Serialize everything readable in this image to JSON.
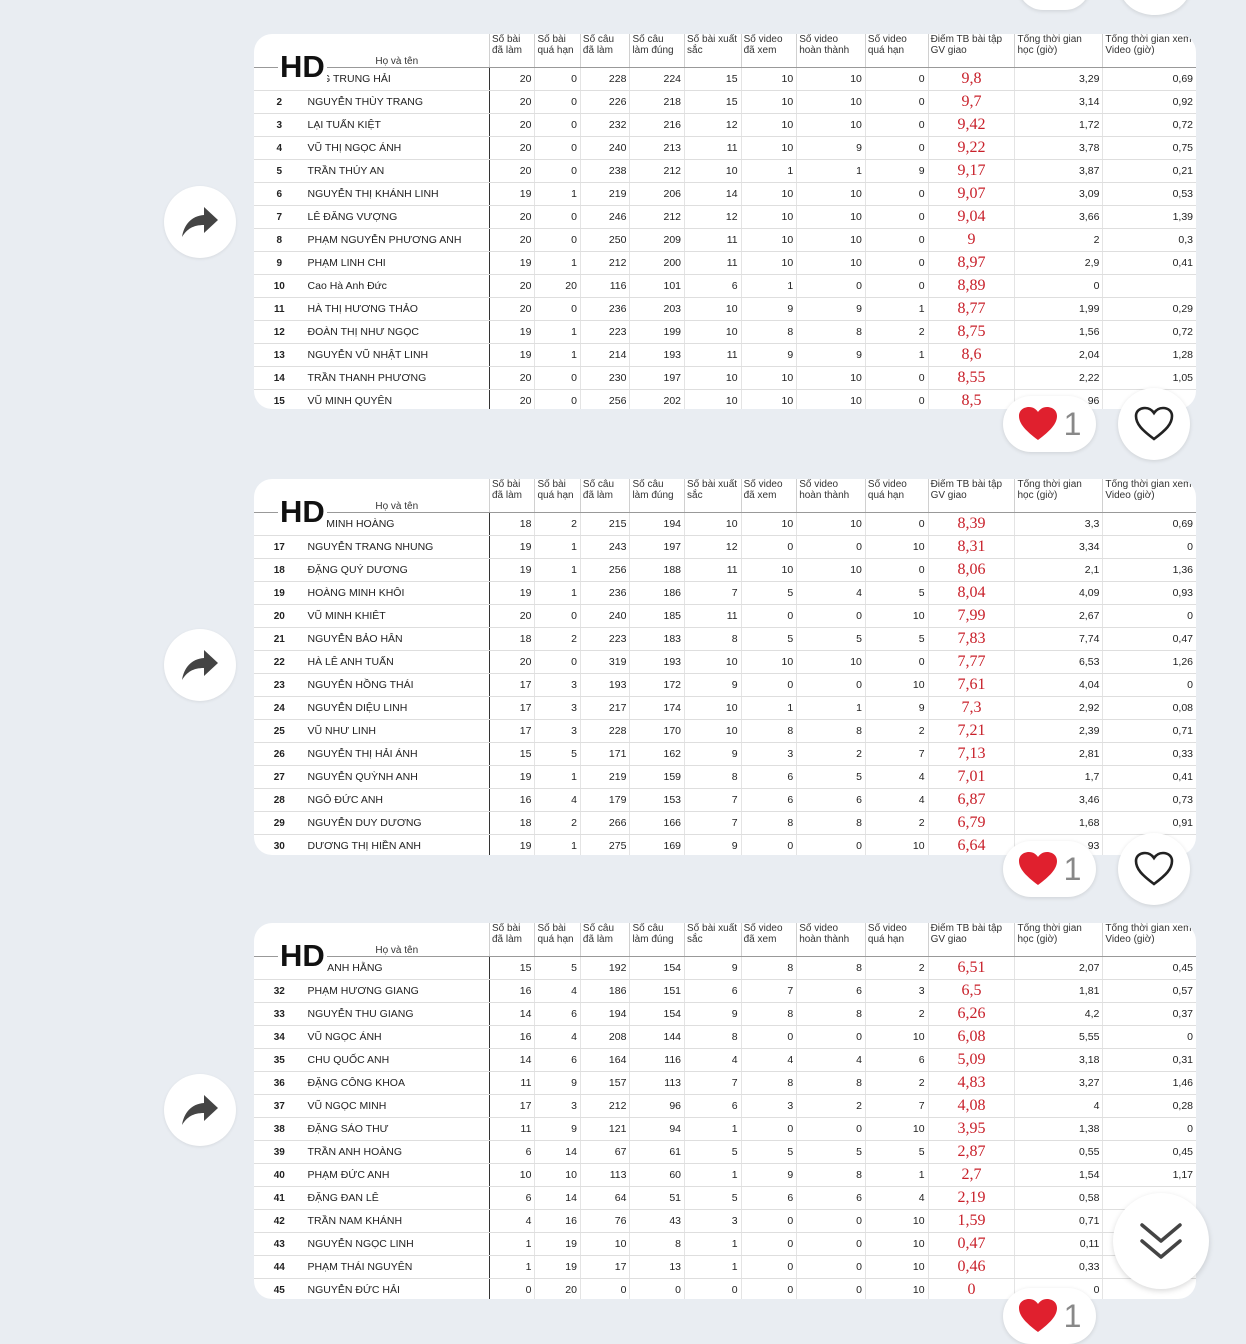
{
  "logo_text": "HD",
  "columns": {
    "stt": "",
    "name": "Họ và tên",
    "c1": "Số bài đã làm",
    "c2": "Số bài quá hạn",
    "c3": "Số câu đã làm",
    "c4": "Số câu làm đúng",
    "c5": "Số bài xuất sắc",
    "c6": "Số video đã xem",
    "c7": "Số video hoàn thành",
    "c8": "Số video quá hạn",
    "c9": "Điểm TB bài tập GV giao",
    "c10": "Tổng thời gian học (giờ)",
    "c11": "Tổng thời gian xem Video (giờ)"
  },
  "messages": [
    {
      "reaction_count": "1",
      "rows": [
        [
          "",
          "ĂNG TRUNG HẢI",
          "20",
          "0",
          "228",
          "224",
          "15",
          "10",
          "10",
          "0",
          "9,8",
          "3,29",
          "0,69"
        ],
        [
          "2",
          "NGUYỄN THÙY TRANG",
          "20",
          "0",
          "226",
          "218",
          "15",
          "10",
          "10",
          "0",
          "9,7",
          "3,14",
          "0,92"
        ],
        [
          "3",
          "LẠI TUẤN KIỆT",
          "20",
          "0",
          "232",
          "216",
          "12",
          "10",
          "10",
          "0",
          "9,42",
          "1,72",
          "0,72"
        ],
        [
          "4",
          "VŨ THỊ NGỌC ÁNH",
          "20",
          "0",
          "240",
          "213",
          "11",
          "10",
          "9",
          "0",
          "9,22",
          "3,78",
          "0,75"
        ],
        [
          "5",
          "TRẦN THÚY AN",
          "20",
          "0",
          "238",
          "212",
          "10",
          "1",
          "1",
          "9",
          "9,17",
          "3,87",
          "0,21"
        ],
        [
          "6",
          "NGUYỄN THỊ KHÁNH LINH",
          "19",
          "1",
          "219",
          "206",
          "14",
          "10",
          "10",
          "0",
          "9,07",
          "3,09",
          "0,53"
        ],
        [
          "7",
          "LÊ ĐĂNG VƯỢNG",
          "20",
          "0",
          "246",
          "212",
          "12",
          "10",
          "10",
          "0",
          "9,04",
          "3,66",
          "1,39"
        ],
        [
          "8",
          "PHẠM NGUYỄN PHƯƠNG ANH",
          "20",
          "0",
          "250",
          "209",
          "11",
          "10",
          "10",
          "0",
          "9",
          "2",
          "0,3"
        ],
        [
          "9",
          "PHẠM LINH CHI",
          "19",
          "1",
          "212",
          "200",
          "11",
          "10",
          "10",
          "0",
          "8,97",
          "2,9",
          "0,41"
        ],
        [
          "10",
          "Cao Hà Anh Đức",
          "20",
          "20",
          "116",
          "101",
          "6",
          "1",
          "0",
          "0",
          "8,89",
          "0",
          ""
        ],
        [
          "11",
          "HÀ THỊ HƯƠNG THẢO",
          "20",
          "0",
          "236",
          "203",
          "10",
          "9",
          "9",
          "1",
          "8,77",
          "1,99",
          "0,29"
        ],
        [
          "12",
          "ĐOÀN THỊ NHƯ NGỌC",
          "19",
          "1",
          "223",
          "199",
          "10",
          "8",
          "8",
          "2",
          "8,75",
          "1,56",
          "0,72"
        ],
        [
          "13",
          "NGUYỄN VŨ NHẬT LINH",
          "19",
          "1",
          "214",
          "193",
          "11",
          "9",
          "9",
          "1",
          "8,6",
          "2,04",
          "1,28"
        ],
        [
          "14",
          "TRẦN THANH PHƯƠNG",
          "20",
          "0",
          "230",
          "197",
          "10",
          "10",
          "10",
          "0",
          "8,55",
          "2,22",
          "1,05"
        ],
        [
          "15",
          "VŨ MINH QUYÊN",
          "20",
          "0",
          "256",
          "202",
          "10",
          "10",
          "10",
          "0",
          "8,5",
          "96",
          ""
        ]
      ]
    },
    {
      "reaction_count": "1",
      "rows": [
        [
          "",
          "ẠM MINH HOÀNG",
          "18",
          "2",
          "215",
          "194",
          "10",
          "10",
          "10",
          "0",
          "8,39",
          "3,3",
          "0,69"
        ],
        [
          "17",
          "NGUYỄN TRANG NHUNG",
          "19",
          "1",
          "243",
          "197",
          "12",
          "0",
          "0",
          "10",
          "8,31",
          "3,34",
          "0"
        ],
        [
          "18",
          "ĐẶNG QUÝ DƯƠNG",
          "19",
          "1",
          "256",
          "188",
          "11",
          "10",
          "10",
          "0",
          "8,06",
          "2,1",
          "1,36"
        ],
        [
          "19",
          "HOÀNG MINH KHÔI",
          "19",
          "1",
          "236",
          "186",
          "7",
          "5",
          "4",
          "5",
          "8,04",
          "4,09",
          "0,93"
        ],
        [
          "20",
          "VŨ MINH KHIÊT",
          "20",
          "0",
          "240",
          "185",
          "11",
          "0",
          "0",
          "10",
          "7,99",
          "2,67",
          "0"
        ],
        [
          "21",
          "NGUYỄN BẢO HÂN",
          "18",
          "2",
          "223",
          "183",
          "8",
          "5",
          "5",
          "5",
          "7,83",
          "7,74",
          "0,47"
        ],
        [
          "22",
          "HÀ LÊ ANH TUẤN",
          "20",
          "0",
          "319",
          "193",
          "10",
          "10",
          "10",
          "0",
          "7,77",
          "6,53",
          "1,26"
        ],
        [
          "23",
          "NGUYỄN HỒNG THÁI",
          "17",
          "3",
          "193",
          "172",
          "9",
          "0",
          "0",
          "10",
          "7,61",
          "4,04",
          "0"
        ],
        [
          "24",
          "NGUYỄN DIỆU LINH",
          "17",
          "3",
          "217",
          "174",
          "10",
          "1",
          "1",
          "9",
          "7,3",
          "2,92",
          "0,08"
        ],
        [
          "25",
          "VŨ NHƯ LINH",
          "17",
          "3",
          "228",
          "170",
          "10",
          "8",
          "8",
          "2",
          "7,21",
          "2,39",
          "0,71"
        ],
        [
          "26",
          "NGUYỄN THỊ HẢI ÁNH",
          "15",
          "5",
          "171",
          "162",
          "9",
          "3",
          "2",
          "7",
          "7,13",
          "2,81",
          "0,33"
        ],
        [
          "27",
          "NGUYỄN QUỲNH ANH",
          "19",
          "1",
          "219",
          "159",
          "8",
          "6",
          "5",
          "4",
          "7,01",
          "1,7",
          "0,41"
        ],
        [
          "28",
          "NGÔ ĐỨC ANH",
          "16",
          "4",
          "179",
          "153",
          "7",
          "6",
          "6",
          "4",
          "6,87",
          "3,46",
          "0,73"
        ],
        [
          "29",
          "NGUYỄN DUY DƯƠNG",
          "18",
          "2",
          "266",
          "166",
          "7",
          "8",
          "8",
          "2",
          "6,79",
          "1,68",
          "0,91"
        ],
        [
          "30",
          "DƯƠNG THỊ HIỀN ANH",
          "19",
          "1",
          "275",
          "169",
          "9",
          "0",
          "0",
          "10",
          "6,64",
          "93",
          ""
        ]
      ]
    },
    {
      "reaction_count": "1",
      "rows": [
        [
          "",
          "I THANH HẰNG",
          "15",
          "5",
          "192",
          "154",
          "9",
          "8",
          "8",
          "2",
          "6,51",
          "2,07",
          "0,45"
        ],
        [
          "32",
          "PHẠM HƯƠNG GIANG",
          "16",
          "4",
          "186",
          "151",
          "6",
          "7",
          "6",
          "3",
          "6,5",
          "1,81",
          "0,57"
        ],
        [
          "33",
          "NGUYỄN THU GIANG",
          "14",
          "6",
          "194",
          "154",
          "9",
          "8",
          "8",
          "2",
          "6,26",
          "4,2",
          "0,37"
        ],
        [
          "34",
          "VŨ NGỌC ÁNH",
          "16",
          "4",
          "208",
          "144",
          "8",
          "0",
          "0",
          "10",
          "6,08",
          "5,55",
          "0"
        ],
        [
          "35",
          "CHU QUỐC ANH",
          "14",
          "6",
          "164",
          "116",
          "4",
          "4",
          "4",
          "6",
          "5,09",
          "3,18",
          "0,31"
        ],
        [
          "36",
          "ĐẶNG CÔNG KHOA",
          "11",
          "9",
          "157",
          "113",
          "7",
          "8",
          "8",
          "2",
          "4,83",
          "3,27",
          "1,46"
        ],
        [
          "37",
          "VŨ NGỌC MINH",
          "17",
          "3",
          "212",
          "96",
          "6",
          "3",
          "2",
          "7",
          "4,08",
          "4",
          "0,28"
        ],
        [
          "38",
          "ĐẶNG SÁO THƯ",
          "11",
          "9",
          "121",
          "94",
          "1",
          "0",
          "0",
          "10",
          "3,95",
          "1,38",
          "0"
        ],
        [
          "39",
          "TRẦN ANH HOÀNG",
          "6",
          "14",
          "67",
          "61",
          "5",
          "5",
          "5",
          "5",
          "2,87",
          "0,55",
          "0,45"
        ],
        [
          "40",
          "PHẠM ĐỨC ANH",
          "10",
          "10",
          "113",
          "60",
          "1",
          "9",
          "8",
          "1",
          "2,7",
          "1,54",
          "1,17"
        ],
        [
          "41",
          "ĐẶNG ĐAN LÊ",
          "6",
          "14",
          "64",
          "51",
          "5",
          "6",
          "6",
          "4",
          "2,19",
          "0,58",
          ""
        ],
        [
          "42",
          "TRẦN NAM KHÁNH",
          "4",
          "16",
          "76",
          "43",
          "3",
          "0",
          "0",
          "10",
          "1,59",
          "0,71",
          ""
        ],
        [
          "43",
          "NGUYỄN NGỌC LINH",
          "1",
          "19",
          "10",
          "8",
          "1",
          "0",
          "0",
          "10",
          "0,47",
          "0,11",
          ""
        ],
        [
          "44",
          "PHẠM THÁI NGUYÊN",
          "1",
          "19",
          "17",
          "13",
          "1",
          "0",
          "0",
          "10",
          "0,46",
          "0,33",
          ""
        ],
        [
          "45",
          "NGUYỄN ĐỨC HẢI",
          "0",
          "20",
          "0",
          "0",
          "0",
          "0",
          "0",
          "10",
          "0",
          "0",
          ""
        ]
      ]
    }
  ],
  "icons": {
    "share": "share-arrow-icon",
    "heart_filled": "red-heart-icon",
    "heart_outline": "heart-outline-icon",
    "scroll_down": "double-chevron-down-icon"
  },
  "colors": {
    "background": "#e9edf2",
    "score": "#c8202a",
    "heart": "#e0202e"
  }
}
